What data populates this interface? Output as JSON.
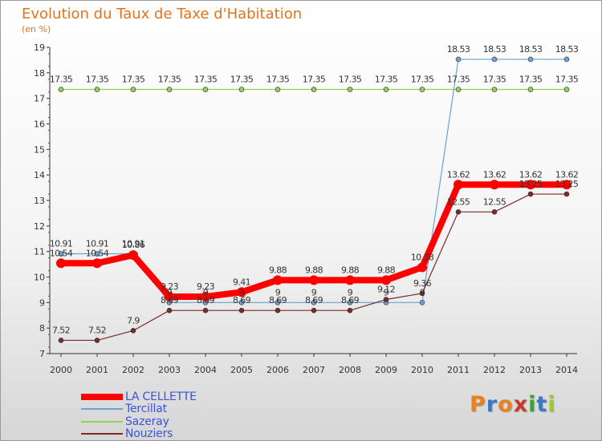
{
  "title": "Evolution du Taux de Taxe d'Habitation",
  "subtitle": "(en %)",
  "logo": {
    "text": "Proxiti",
    "letter_colors": [
      "#e8821c",
      "#3a78c8",
      "#e8821c",
      "#c83a2a",
      "#3aa03a",
      "#3a78c8",
      "#9cc83a"
    ]
  },
  "chart_data": {
    "type": "line",
    "title": "Evolution du Taux de Taxe d'Habitation",
    "subtitle": "(en %)",
    "xlabel": "",
    "ylabel": "",
    "categories": [
      "2000",
      "2001",
      "2002",
      "2003",
      "2004",
      "2005",
      "2006",
      "2007",
      "2008",
      "2009",
      "2010",
      "2011",
      "2012",
      "2013",
      "2014"
    ],
    "ylim": [
      7,
      19
    ],
    "yticks": [
      7,
      8,
      9,
      10,
      11,
      12,
      13,
      14,
      15,
      16,
      17,
      18,
      19
    ],
    "grid": false,
    "legend_position": "bottom-left",
    "series": [
      {
        "name": "LA CELLETTE",
        "color": "#ff0000",
        "values": [
          10.54,
          10.54,
          10.86,
          9.23,
          9.23,
          9.41,
          9.88,
          9.88,
          9.88,
          9.88,
          10.38,
          13.62,
          13.62,
          13.62,
          13.62
        ],
        "labels": [
          "10.54",
          "10.54",
          "10.86",
          "9.23",
          "9.23",
          "9.41",
          "9.88",
          "9.88",
          "9.88",
          "9.88",
          "10.38",
          "13.62",
          "13.62",
          "13.62",
          "13.62"
        ]
      },
      {
        "name": "Tercillat",
        "color": "#6aa2d2",
        "values": [
          10.91,
          10.91,
          10.91,
          9,
          9,
          9,
          9,
          9,
          9,
          9,
          9,
          18.53,
          18.53,
          18.53,
          18.53
        ],
        "labels": [
          "10.91",
          "10.91",
          "10.91",
          "9",
          "9",
          "9",
          "9",
          "9",
          "9",
          "9",
          "9",
          "18.53",
          "18.53",
          "18.53",
          "18.53"
        ]
      },
      {
        "name": "Sazeray",
        "color": "#8ed25a",
        "values": [
          17.35,
          17.35,
          17.35,
          17.35,
          17.35,
          17.35,
          17.35,
          17.35,
          17.35,
          17.35,
          17.35,
          17.35,
          17.35,
          17.35,
          17.35
        ],
        "labels": [
          "17.35",
          "17.35",
          "17.35",
          "17.35",
          "17.35",
          "17.35",
          "17.35",
          "17.35",
          "17.35",
          "17.35",
          "17.35",
          "17.35",
          "17.35",
          "17.35",
          "17.35"
        ]
      },
      {
        "name": "Nouziers",
        "color": "#7a2a2a",
        "values": [
          7.52,
          7.52,
          7.9,
          8.69,
          8.69,
          8.69,
          8.69,
          8.69,
          8.69,
          9.12,
          9.36,
          12.55,
          12.55,
          13.25,
          13.25
        ],
        "labels": [
          "7.52",
          "7.52",
          "7.9",
          "8.69",
          "8.69",
          "8.69",
          "8.69",
          "8.69",
          "8.69",
          "9.12",
          "9.36",
          "12.55",
          "12.55",
          "13.25",
          "13.25"
        ]
      }
    ]
  }
}
